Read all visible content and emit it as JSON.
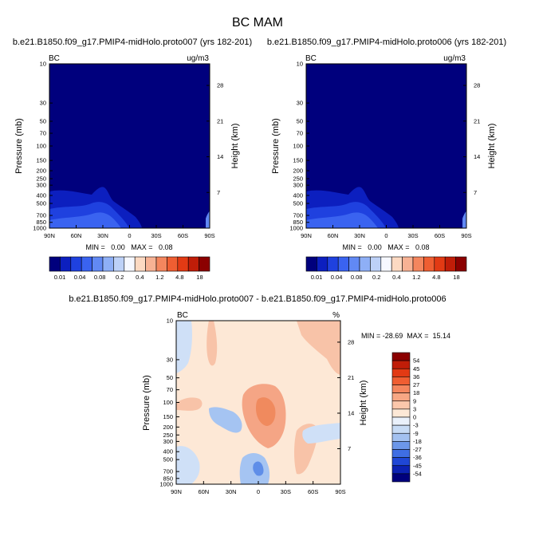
{
  "title": "BC MAM",
  "colors": {
    "navy": "#00007d",
    "lev_blue_dark": "#0c1fbf",
    "lev_blue_mid": "#1f41df",
    "lev_blue_light": "#3a63f0",
    "diff_bg": "#fde8d6",
    "diff_light_blue": "#cfe0f7",
    "diff_salmon": "#f5a585",
    "diff_orange": "#f08a5e",
    "diff_blue": "#a5c4f2",
    "diff_mid_blue": "#5f8ee8"
  },
  "chart_data": [
    {
      "type": "contour",
      "panel": "top-left",
      "title": "b.e21.B1850.f09_g17.PMIP4-midHolo.proto007 (yrs 182-201)",
      "corner_left": "BC",
      "corner_right": "ug/m3",
      "ylabel": "Pressure (mb)",
      "ylabel_right": "Height (km)",
      "x_ticks": [
        "90N",
        "60N",
        "30N",
        "0",
        "30S",
        "60S",
        "90S"
      ],
      "y_ticks": [
        "10",
        "30",
        "50",
        "70",
        "100",
        "150",
        "200",
        "250",
        "300",
        "400",
        "500",
        "700",
        "850",
        "1000"
      ],
      "y_ticks_right": [
        "28",
        "21",
        "14",
        "7"
      ],
      "stats": "MIN =   0.00   MAX =   0.08"
    },
    {
      "type": "contour",
      "panel": "top-right",
      "title": "b.e21.B1850.f09_g17.PMIP4-midHolo.proto006 (yrs 182-201)",
      "corner_left": "BC",
      "corner_right": "ug/m3",
      "ylabel": "Pressure (mb)",
      "ylabel_right": "Height (km)",
      "x_ticks": [
        "90N",
        "60N",
        "30N",
        "0",
        "30S",
        "60S",
        "90S"
      ],
      "y_ticks": [
        "10",
        "30",
        "50",
        "70",
        "100",
        "150",
        "200",
        "250",
        "300",
        "400",
        "500",
        "700",
        "850",
        "1000"
      ],
      "y_ticks_right": [
        "28",
        "21",
        "14",
        "7"
      ],
      "stats": "MIN =   0.00   MAX =   0.08"
    },
    {
      "type": "contour",
      "panel": "bottom",
      "title": "b.e21.B1850.f09_g17.PMIP4-midHolo.proto007 - b.e21.B1850.f09_g17.PMIP4-midHolo.proto006",
      "corner_left": "BC",
      "corner_right": "%",
      "ylabel": "Pressure (mb)",
      "ylabel_right": "Height (km)",
      "x_ticks": [
        "90N",
        "60N",
        "30N",
        "0",
        "30S",
        "60S",
        "90S"
      ],
      "y_ticks": [
        "10",
        "30",
        "50",
        "70",
        "100",
        "150",
        "200",
        "250",
        "300",
        "400",
        "500",
        "700",
        "850",
        "1000"
      ],
      "y_ticks_right": [
        "28",
        "21",
        "14",
        "7"
      ],
      "stats": "MIN = -28.69  MAX =  15.14"
    }
  ],
  "colorbar_top": {
    "colors": [
      "#00007d",
      "#0c1fbf",
      "#1f41df",
      "#3a63f0",
      "#6189f4",
      "#8eaff6",
      "#bdd1f7",
      "#f6f8ff",
      "#fcd9c2",
      "#f7b294",
      "#f4865e",
      "#ef5e32",
      "#e23a14",
      "#c01d08",
      "#8b0000"
    ],
    "labels": [
      "0.01",
      "0.04",
      "0.08",
      "0.2",
      "0.4",
      "1.2",
      "4.8",
      "18"
    ]
  },
  "colorbar_diff": {
    "colors": [
      "#8b0000",
      "#c01d08",
      "#e23a14",
      "#ef5e32",
      "#f4865e",
      "#f7a784",
      "#fbc7ab",
      "#fde8d6",
      "#eaf1fb",
      "#c7dbf5",
      "#a3c1f0",
      "#6c97e9",
      "#3f6ee3",
      "#1f47d6",
      "#0c22b3",
      "#00007d"
    ],
    "labels": [
      "54",
      "45",
      "36",
      "27",
      "18",
      "9",
      "3",
      "0",
      "-3",
      "-9",
      "-18",
      "-27",
      "-36",
      "-45",
      "-54"
    ]
  }
}
